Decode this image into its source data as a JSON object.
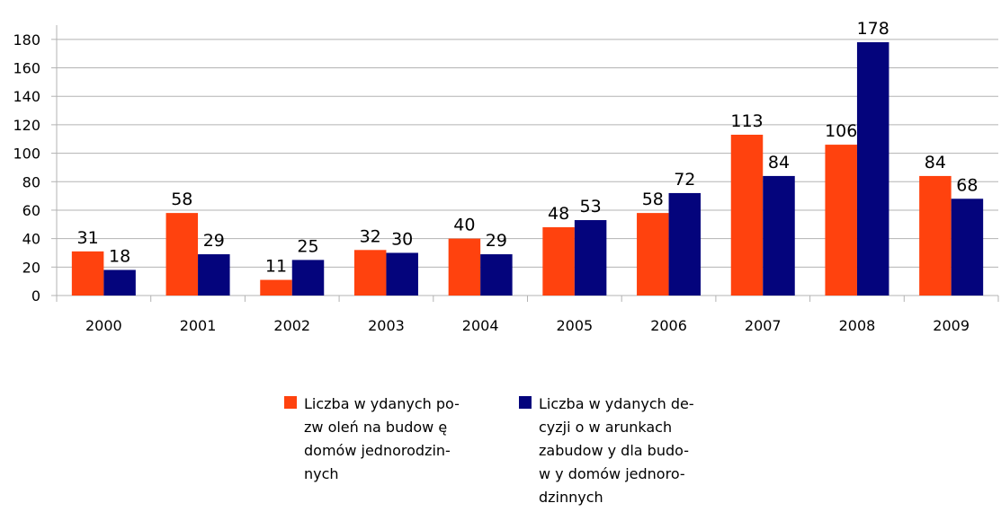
{
  "chart_data": {
    "type": "bar",
    "categories": [
      "2000",
      "2001",
      "2002",
      "2003",
      "2004",
      "2005",
      "2006",
      "2007",
      "2008",
      "2009"
    ],
    "series": [
      {
        "name": "Liczba w ydanych po-\nzw oleń na budow ę\ndomów  jednorodzin-\nnych",
        "color": "#ff420e",
        "values": [
          31,
          58,
          11,
          32,
          40,
          48,
          58,
          113,
          106,
          84
        ]
      },
      {
        "name": "Liczba w ydanych de-\ncyzji o w arunkach\nzabudow y dla budo-\nw y domów  jednoro-\ndzinnych",
        "color": "#04047c",
        "values": [
          18,
          29,
          25,
          30,
          29,
          53,
          72,
          84,
          178,
          68
        ]
      }
    ],
    "ylim": [
      0,
      190
    ],
    "yticks": [
      0,
      20,
      40,
      60,
      80,
      100,
      120,
      140,
      160,
      180
    ],
    "grid": true,
    "legend": "bottom"
  }
}
